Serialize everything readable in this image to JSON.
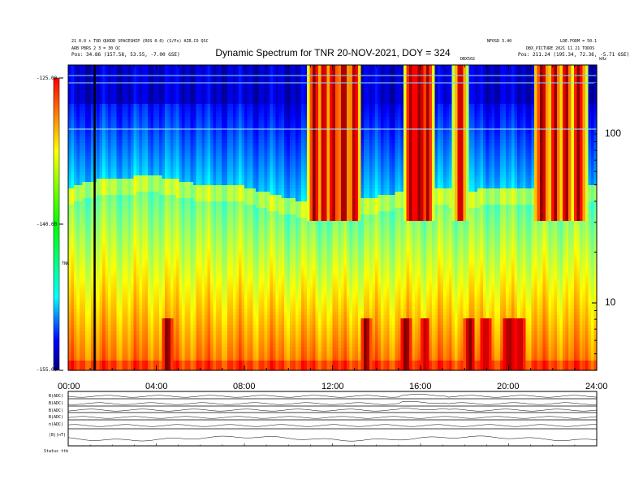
{
  "header": {
    "title": "Dynamic Spectrum for TNR 20-NOV-2021, DOY = 324",
    "left_line1": "21 0.0 + TOD QUODD SPACESHIP (ROS 0.0) (S/Ps)  AIR.CO QSC",
    "left_line2": "ARB PBRS 2 3 = 30 QC",
    "left_line3": "Pos: 34.86 (157.58, 53.55, -7.00 GSE)",
    "right_line1": "NFOSD 3.40",
    "right_line2": "LDE.FODM = 50.1",
    "right_line3": "DBX_PICTURE 2021 11 21 TODOS",
    "right_line4": "Pos: 211.24 (195.34, 72.36, -5.71 GSE)",
    "marker_label": "DBX502",
    "khz_label": "kHz"
  },
  "colorbar": {
    "tick_labels": [
      "-125.00",
      "-140.00",
      "-155.00"
    ],
    "unit_label": "TNR"
  },
  "axes": {
    "x_tick_labels": [
      "00:00",
      "04:00",
      "08:00",
      "12:00",
      "16:00",
      "20:00",
      "24:00"
    ],
    "y_tick_labels": [
      "100",
      "10"
    ]
  },
  "panels": {
    "labels": [
      "B(ADC)",
      "B(ADC)",
      "B(ADC)",
      "B(ADC)",
      "n(ADC)",
      "|B|(nT)"
    ],
    "footer_label": "Status  ttb"
  },
  "chart_data": {
    "type": "heatmap",
    "title": "Dynamic Spectrum for TNR 20-NOV-2021, DOY = 324",
    "x": {
      "label": "",
      "range_hours": [
        0,
        24
      ],
      "ticks": [
        "00:00",
        "04:00",
        "08:00",
        "12:00",
        "16:00",
        "20:00",
        "24:00"
      ]
    },
    "y": {
      "label": "kHz",
      "scale": "log",
      "range": [
        4,
        200
      ],
      "ticks": [
        10,
        100
      ]
    },
    "colorbar": {
      "range": [
        -155,
        -125
      ],
      "ticks": [
        -125,
        -140,
        -155
      ],
      "colormap": "jet"
    },
    "features": {
      "continuum_boundary_khz_by_hour": [
        [
          0,
          38
        ],
        [
          1,
          42
        ],
        [
          2,
          44
        ],
        [
          4,
          45
        ],
        [
          6,
          40
        ],
        [
          8,
          39
        ],
        [
          10,
          33
        ],
        [
          12,
          31
        ],
        [
          14,
          34
        ],
        [
          16,
          38
        ],
        [
          18,
          37
        ],
        [
          20,
          38
        ],
        [
          22,
          39
        ],
        [
          24,
          40
        ]
      ],
      "type3_bursts_hours": [
        11.2,
        11.6,
        12.0,
        12.5,
        13.0,
        15.6,
        15.9,
        16.1,
        16.3,
        17.8,
        21.5,
        22.1,
        22.6,
        23.2
      ],
      "data_gap_hour": 1.2,
      "low_freq_enhancement_hours": [
        4.5,
        13.5,
        15.3,
        16.2,
        18.2,
        19.0,
        20.0,
        20.5
      ]
    }
  }
}
